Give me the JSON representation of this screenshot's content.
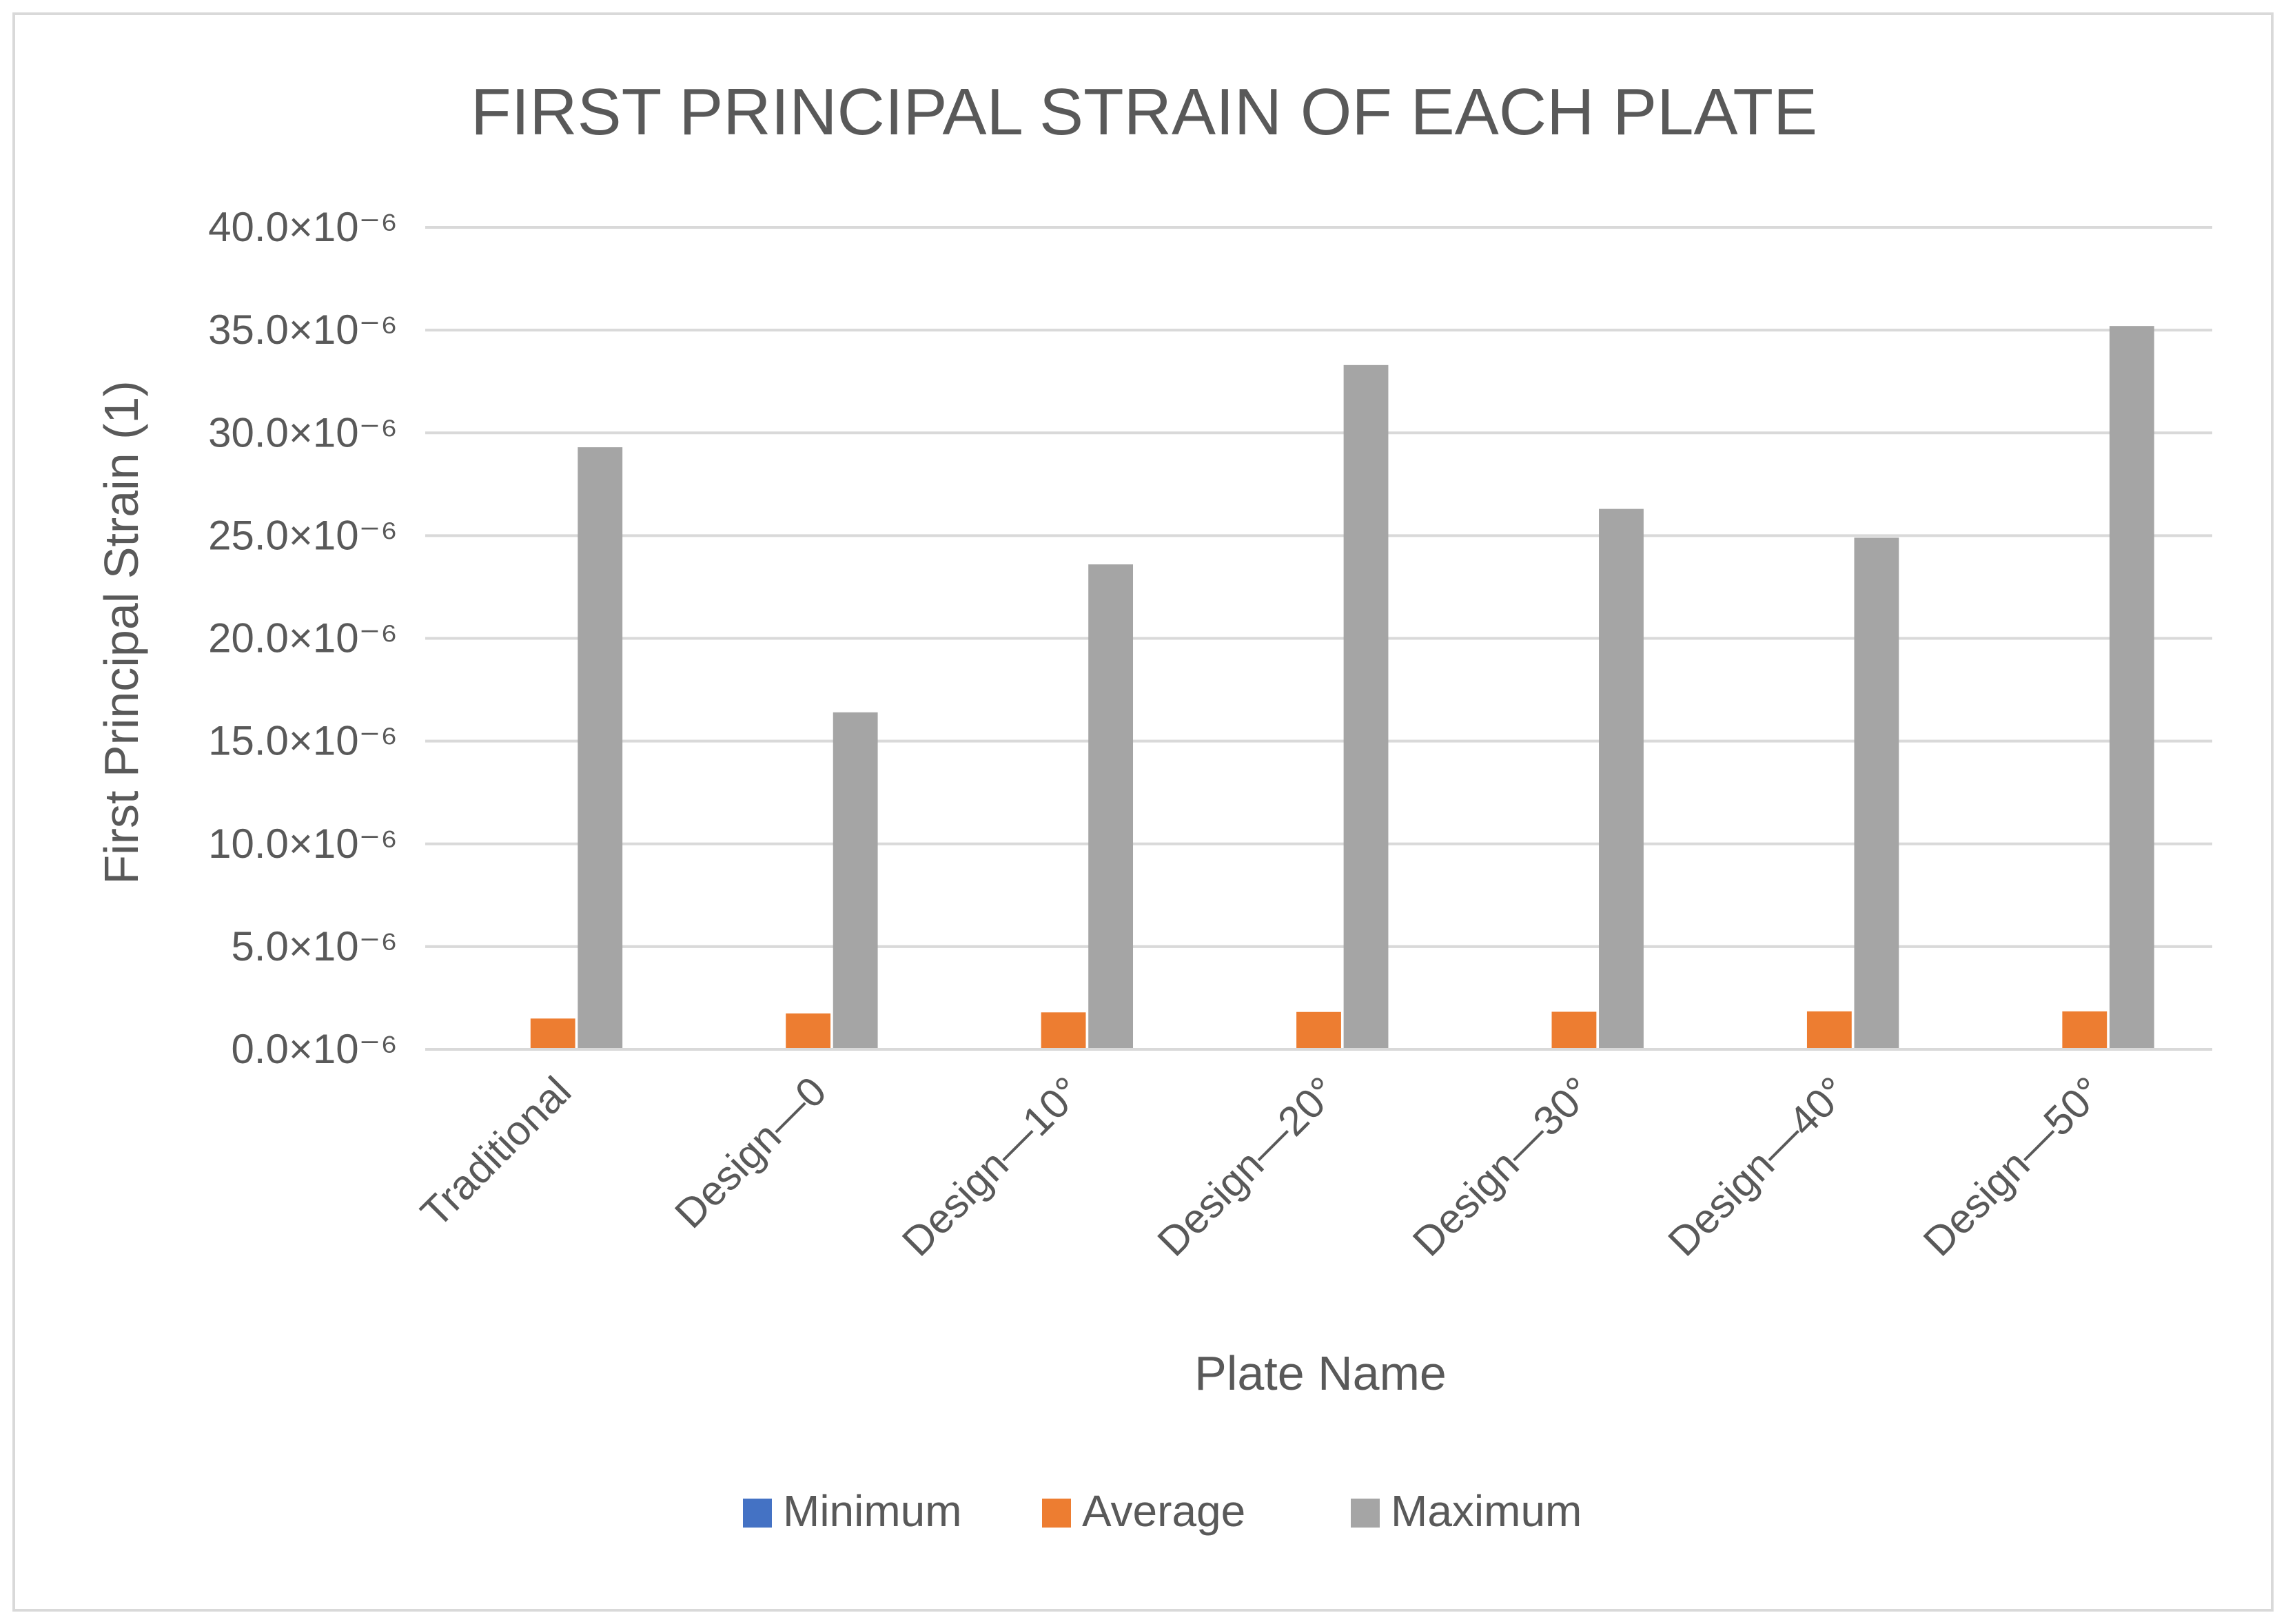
{
  "chart_data": {
    "type": "bar",
    "title": "FIRST PRINCIPAL STRAIN OF EACH PLATE",
    "xlabel": "Plate Name",
    "ylabel": "First Principal Strain (1)",
    "categories": [
      "Traditional",
      "Design—0",
      "Design—10°",
      "Design—20°",
      "Design—30°",
      "Design—40°",
      "Design—50°"
    ],
    "series": [
      {
        "name": "Minimum",
        "color": "#4472C4",
        "values": [
          0.0,
          0.0,
          0.0,
          0.0,
          0.0,
          0.0,
          0.0
        ]
      },
      {
        "name": "Average",
        "color": "#ED7D31",
        "values": [
          1.5,
          1.75,
          1.8,
          1.82,
          1.83,
          1.85,
          1.85
        ]
      },
      {
        "name": "Maximum",
        "color": "#A5A5A5",
        "values": [
          29.3,
          16.4,
          23.6,
          33.3,
          26.3,
          24.9,
          35.2
        ]
      }
    ],
    "ylim": [
      0,
      40
    ],
    "yticks": [
      0,
      5,
      10,
      15,
      20,
      25,
      30,
      35,
      40
    ],
    "ytick_labels": [
      "0.0×10⁻⁶",
      "5.0×10⁻⁶",
      "10.0×10⁻⁶",
      "15.0×10⁻⁶",
      "20.0×10⁻⁶",
      "25.0×10⁻⁶",
      "30.0×10⁻⁶",
      "35.0×10⁻⁶",
      "40.0×10⁻⁶"
    ],
    "grid": true,
    "legend_position": "bottom",
    "gridline_color": "#d9d9d9",
    "frame_color": "#d9d9d9"
  }
}
